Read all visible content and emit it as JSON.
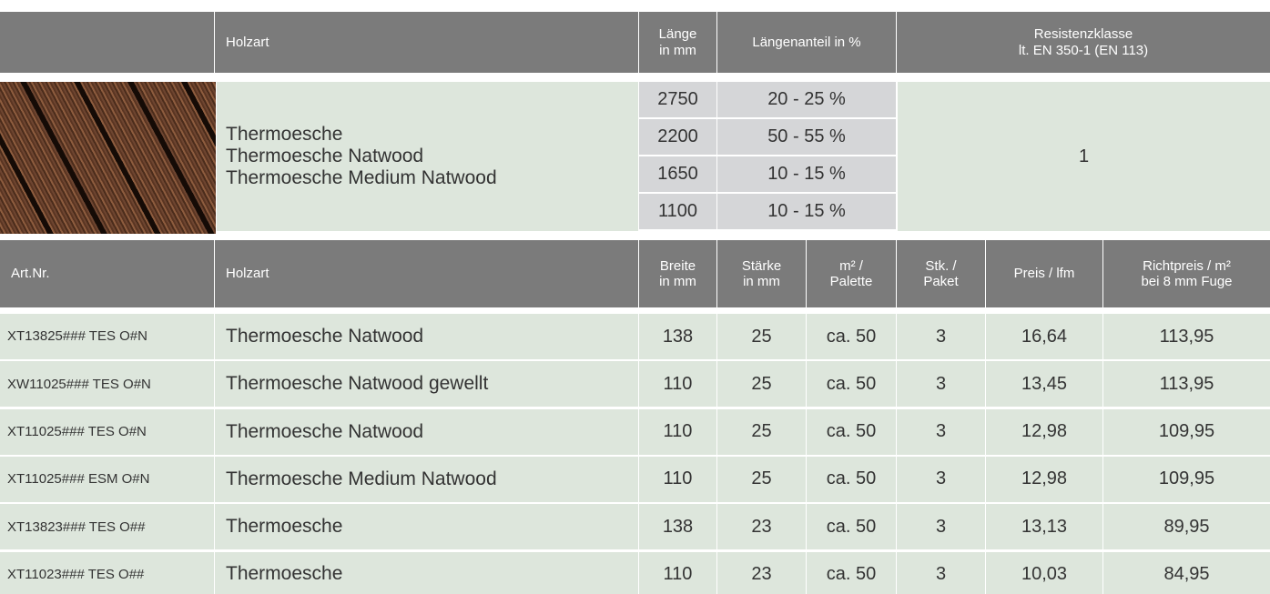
{
  "header1": {
    "holzart": "Holzart",
    "laenge": "Länge\nin mm",
    "anteil": "Längenanteil in %",
    "resistenz": "Resistenzklasse\nlt. EN 350-1 (EN 113)"
  },
  "info": {
    "holzarten": "Thermoesche\nThermoesche Natwood\nThermoesche Medium Natwood",
    "rows": [
      [
        "2750",
        "20 - 25 %"
      ],
      [
        "2200",
        "50 - 55 %"
      ],
      [
        "1650",
        "10 - 15 %"
      ],
      [
        "1100",
        "10 - 15 %"
      ]
    ],
    "resistenzklasse": "1"
  },
  "header2": [
    "Art.Nr.",
    "Holzart",
    "Breite\nin mm",
    "Stärke\nin mm",
    "m² /\nPalette",
    "Stk. /\nPaket",
    "Preis / lfm",
    "Richtpreis / m²\nbei 8 mm Fuge"
  ],
  "rows": [
    [
      "XT13825### TES O#N",
      "Thermoesche Natwood",
      "138",
      "25",
      "ca. 50",
      "3",
      "16,64",
      "113,95"
    ],
    [
      "XW11025### TES O#N",
      "Thermoesche Natwood gewellt",
      "110",
      "25",
      "ca. 50",
      "3",
      "13,45",
      "113,95"
    ],
    [
      "XT11025### TES O#N",
      "Thermoesche Natwood",
      "110",
      "25",
      "ca. 50",
      "3",
      "12,98",
      "109,95"
    ],
    [
      "XT11025### ESM O#N",
      "Thermoesche Medium Natwood",
      "110",
      "25",
      "ca. 50",
      "3",
      "12,98",
      "109,95"
    ],
    [
      "XT13823### TES O##",
      "Thermoesche",
      "138",
      "23",
      "ca. 50",
      "3",
      "13,13",
      "89,95"
    ],
    [
      "XT11023### TES O##",
      "Thermoesche",
      "110",
      "23",
      "ca. 50",
      "3",
      "10,03",
      "84,95"
    ]
  ]
}
